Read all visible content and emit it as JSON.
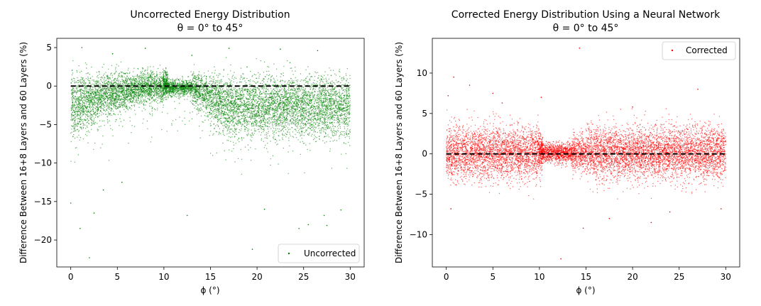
{
  "chart_data": [
    {
      "type": "scatter",
      "title": "Uncorrected Energy Distribution",
      "subtitle": "θ = 0° to 45°",
      "xlabel": "ϕ (°)",
      "ylabel": "Difference Between 16+8 Layers and 60 Layers (%)",
      "xlim": [
        -1.5,
        31.5
      ],
      "ylim": [
        -23.5,
        6.2
      ],
      "xticks": [
        0,
        5,
        10,
        15,
        20,
        25,
        30
      ],
      "yticks": [
        5,
        0,
        -5,
        -10,
        -15,
        -20
      ],
      "xtick_labels": [
        "0",
        "5",
        "10",
        "15",
        "20",
        "25",
        "30"
      ],
      "ytick_labels": [
        "5",
        "0",
        "−5",
        "−10",
        "−15",
        "−20"
      ],
      "legend": {
        "label": "Uncorrected",
        "placement": "lower-right"
      },
      "reference_line": {
        "y": 0,
        "style": "dashed",
        "color": "#000000"
      },
      "series": [
        {
          "name": "Uncorrected",
          "color": "#008000",
          "approx_points": 9000,
          "outliers": [
            [
              1.0,
              -18.5
            ],
            [
              2.0,
              -22.3
            ],
            [
              0.0,
              -15.2
            ],
            [
              2.5,
              -16.5
            ],
            [
              3.5,
              -13.5
            ],
            [
              5.5,
              -12.5
            ],
            [
              12.5,
              -16.8
            ],
            [
              19.5,
              -21.2
            ],
            [
              25.5,
              -18.0
            ],
            [
              27.2,
              -16.8
            ],
            [
              27.5,
              -18.1
            ],
            [
              29.0,
              -16.1
            ],
            [
              24.5,
              -18.5
            ],
            [
              20.8,
              -16.0
            ],
            [
              1.2,
              5.0
            ],
            [
              8.0,
              4.9
            ],
            [
              17.0,
              4.9
            ],
            [
              22.5,
              4.8
            ],
            [
              26.5,
              4.6
            ],
            [
              13.0,
              4.0
            ],
            [
              4.5,
              4.2
            ]
          ]
        }
      ]
    },
    {
      "type": "scatter",
      "title": "Corrected Energy Distribution Using a Neural Network",
      "subtitle": "θ = 0° to 45°",
      "xlabel": "ϕ (°)",
      "ylabel": "Difference Between 16+8 Layers and 60 Layers (%)",
      "xlim": [
        -1.5,
        31.5
      ],
      "ylim": [
        -14.0,
        14.3
      ],
      "xticks": [
        0,
        5,
        10,
        15,
        20,
        25,
        30
      ],
      "yticks": [
        10,
        5,
        0,
        -5,
        -10
      ],
      "xtick_labels": [
        "0",
        "5",
        "10",
        "15",
        "20",
        "25",
        "30"
      ],
      "ytick_labels": [
        "10",
        "5",
        "0",
        "−5",
        "−10"
      ],
      "legend": {
        "label": "Corrected",
        "placement": "upper-right"
      },
      "reference_line": {
        "y": 0,
        "style": "dashed",
        "color": "#000000"
      },
      "series": [
        {
          "name": "Corrected",
          "color": "#ff0000",
          "approx_points": 9000,
          "outliers": [
            [
              14.3,
              13.1
            ],
            [
              12.3,
              -13.0
            ],
            [
              0.8,
              9.5
            ],
            [
              2.5,
              8.5
            ],
            [
              0.2,
              7.2
            ],
            [
              5.0,
              7.5
            ],
            [
              27.0,
              8.0
            ],
            [
              10.2,
              7.0
            ],
            [
              0.5,
              -6.8
            ],
            [
              14.7,
              -9.2
            ],
            [
              22.0,
              -8.5
            ],
            [
              17.5,
              -8.0
            ],
            [
              24.0,
              -7.2
            ],
            [
              29.5,
              -6.8
            ],
            [
              6.0,
              6.3
            ],
            [
              20.0,
              5.8
            ]
          ]
        }
      ]
    }
  ]
}
